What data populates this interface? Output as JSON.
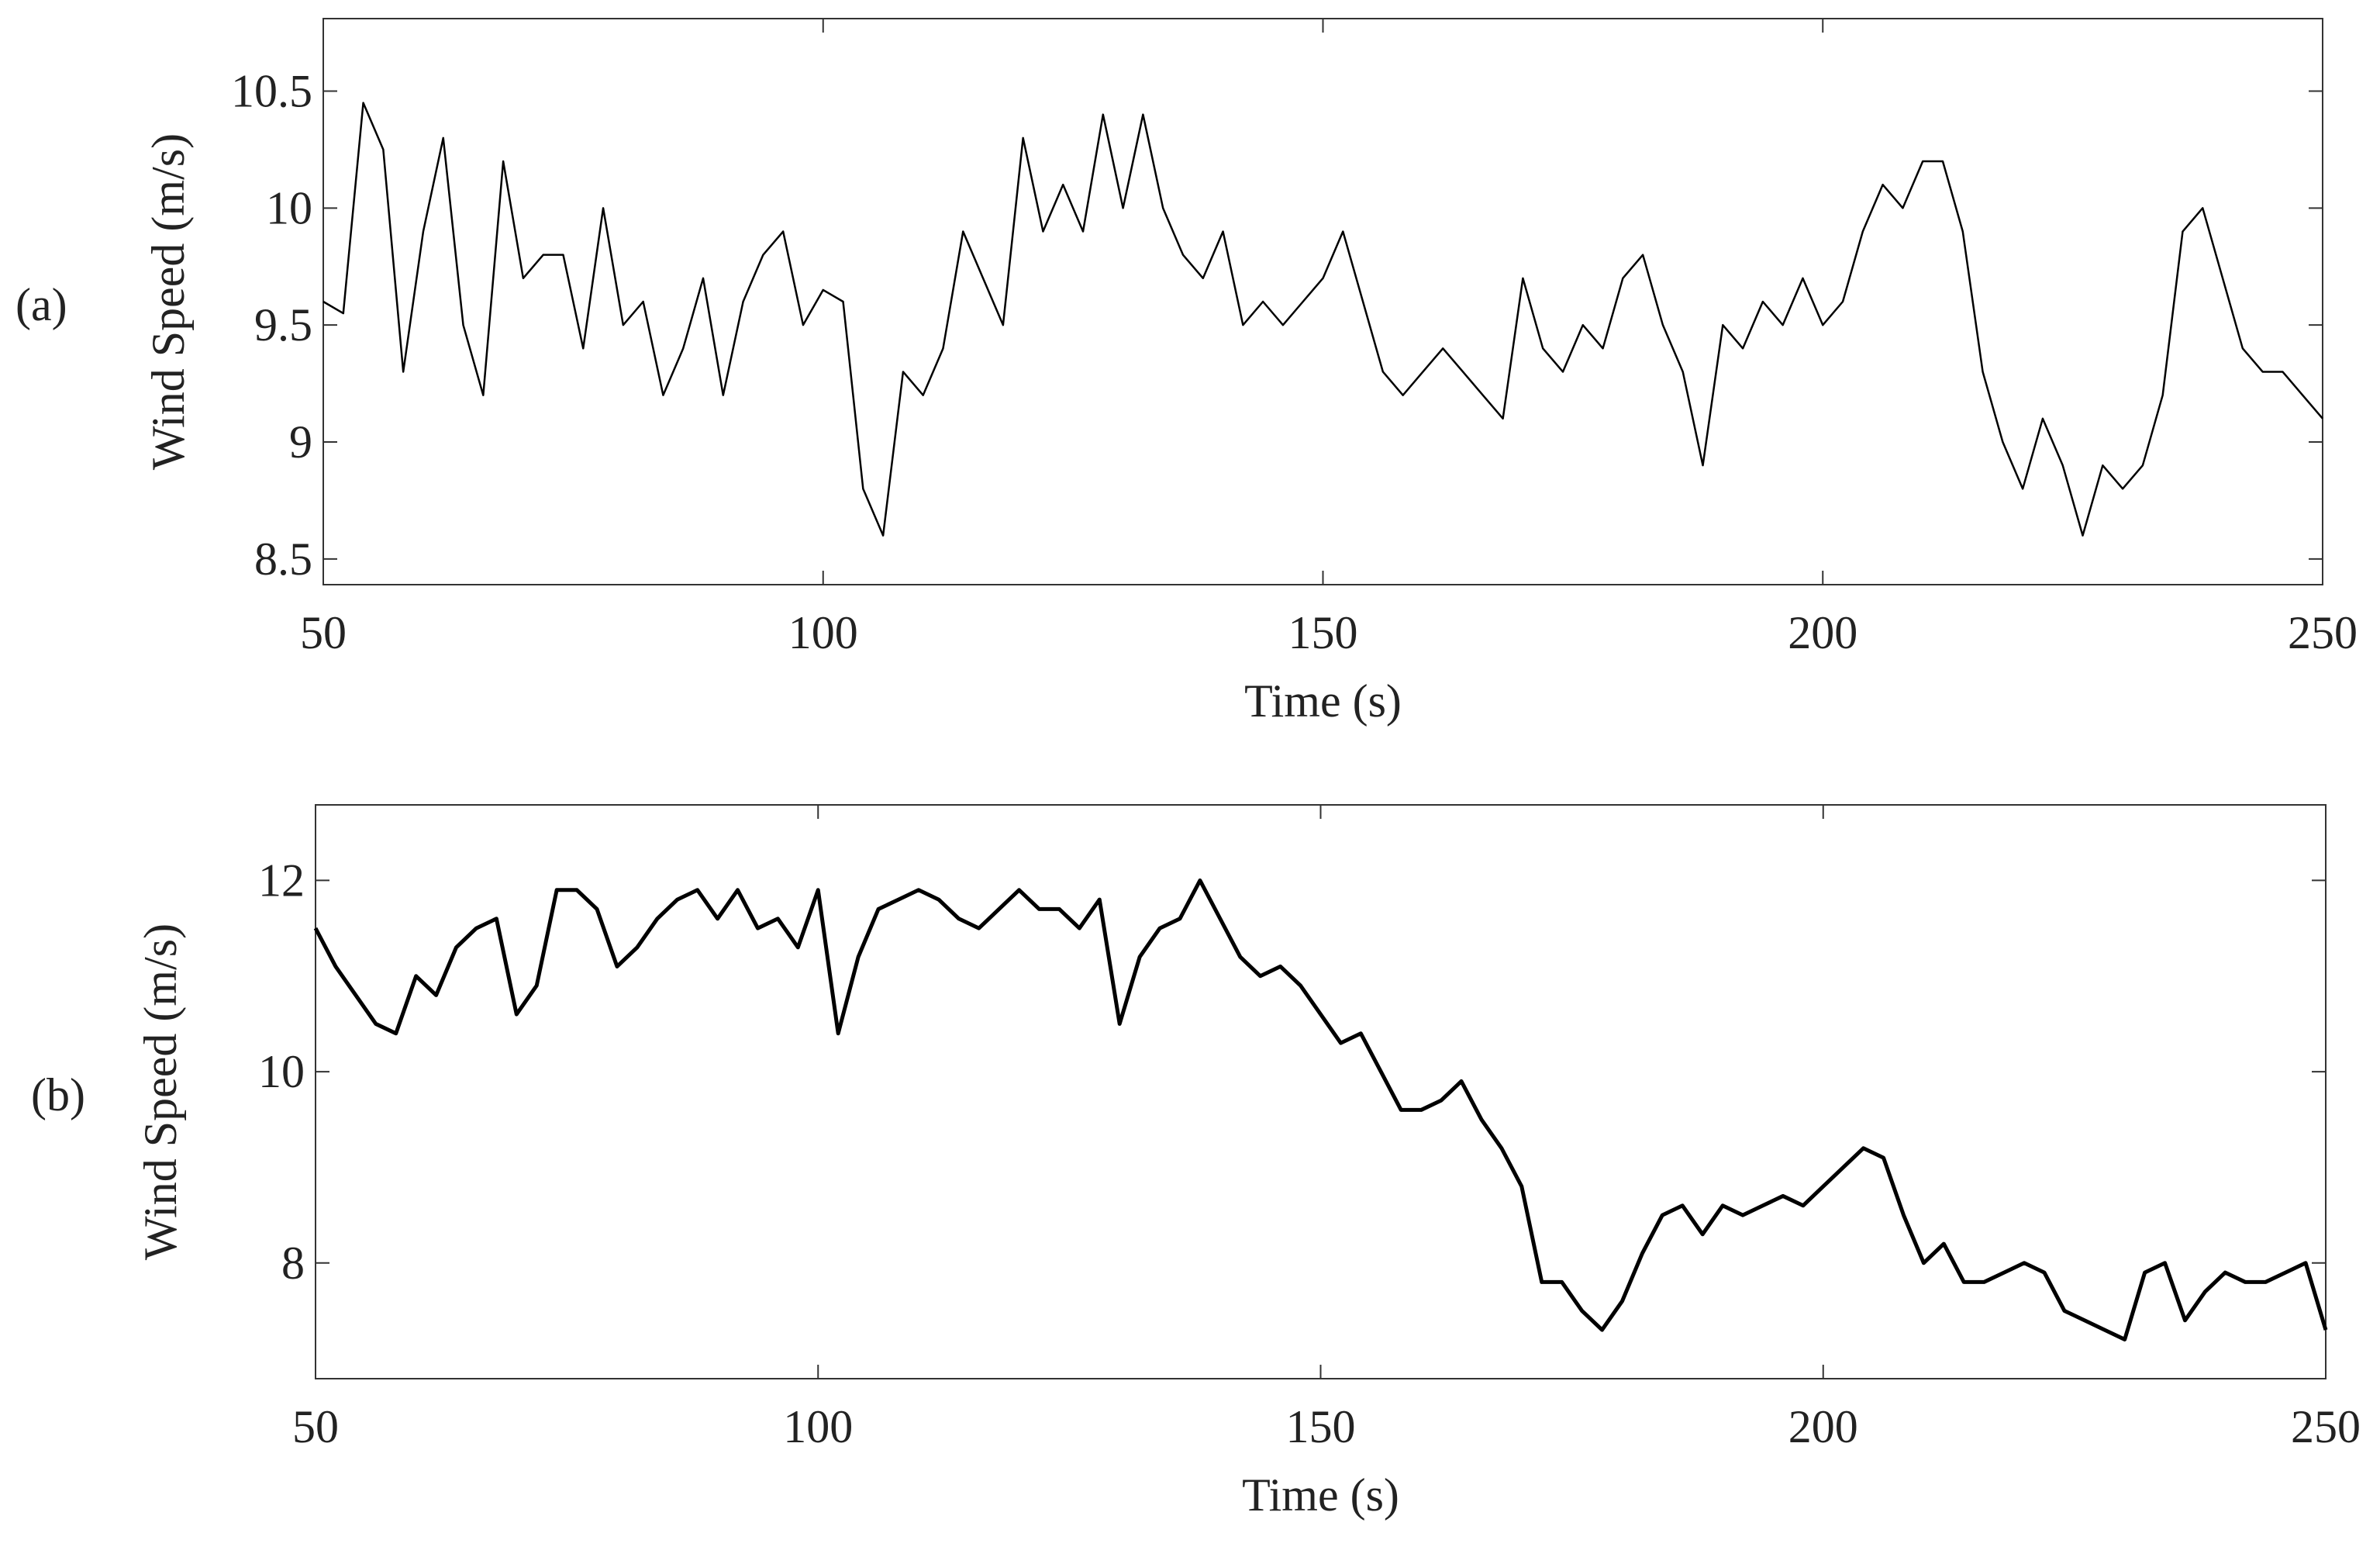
{
  "chart_data": [
    {
      "type": "line",
      "label": "(a)",
      "xlabel": "Time (s)",
      "ylabel": "Wind Speed (m/s)",
      "xlim": [
        50,
        250
      ],
      "xticks": [
        50,
        100,
        150,
        200,
        250
      ],
      "ylim": [
        8.39,
        10.81
      ],
      "yticks": [
        8.5,
        9,
        9.5,
        10,
        10.5
      ],
      "x": [
        50,
        52,
        54,
        56,
        58,
        60,
        62,
        64,
        66,
        68,
        70,
        72,
        74,
        76,
        78,
        80,
        82,
        84,
        86,
        88,
        90,
        92,
        94,
        96,
        98,
        100,
        102,
        104,
        106,
        108,
        110,
        112,
        114,
        116,
        118,
        120,
        122,
        124,
        126,
        128,
        130,
        132,
        134,
        136,
        138,
        140,
        142,
        144,
        146,
        148,
        150,
        152,
        154,
        156,
        158,
        160,
        162,
        164,
        166,
        168,
        170,
        172,
        174,
        176,
        178,
        180,
        182,
        184,
        186,
        188,
        190,
        192,
        194,
        196,
        198,
        200,
        202,
        204,
        206,
        208,
        210,
        212,
        214,
        216,
        218,
        220,
        222,
        224,
        226,
        228,
        230,
        232,
        234,
        236,
        238,
        240,
        242,
        244,
        246,
        248,
        250
      ],
      "series": [
        {
          "color": "#000000",
          "width": 2.5,
          "values": [
            9.6,
            9.55,
            10.45,
            10.25,
            9.3,
            9.9,
            10.3,
            9.5,
            9.2,
            10.2,
            9.7,
            9.8,
            9.8,
            9.4,
            10.0,
            9.5,
            9.6,
            9.2,
            9.4,
            9.7,
            9.2,
            9.6,
            9.8,
            9.9,
            9.5,
            9.65,
            9.6,
            8.8,
            8.6,
            9.3,
            9.2,
            9.4,
            9.9,
            9.7,
            9.5,
            10.3,
            9.9,
            10.1,
            9.9,
            10.4,
            10.0,
            10.4,
            10.0,
            9.8,
            9.7,
            9.9,
            9.5,
            9.6,
            9.5,
            9.6,
            9.7,
            9.9,
            9.6,
            9.3,
            9.2,
            9.3,
            9.4,
            9.3,
            9.2,
            9.1,
            9.7,
            9.4,
            9.3,
            9.5,
            9.4,
            9.7,
            9.8,
            9.5,
            9.3,
            8.9,
            9.5,
            9.4,
            9.6,
            9.5,
            9.7,
            9.5,
            9.6,
            9.9,
            10.1,
            10.0,
            10.2,
            10.2,
            9.9,
            9.3,
            9.0,
            8.8,
            9.1,
            8.9,
            8.6,
            8.9,
            8.8,
            8.9,
            9.2,
            9.9,
            10.0,
            9.7,
            9.4,
            9.3,
            9.3,
            9.2,
            9.1
          ]
        }
      ]
    },
    {
      "type": "line",
      "label": "(b)",
      "xlabel": "Time (s)",
      "ylabel": "Wind Speed (m/s)",
      "xlim": [
        50,
        250
      ],
      "xticks": [
        50,
        100,
        150,
        200,
        250
      ],
      "ylim": [
        6.79,
        12.79
      ],
      "yticks": [
        8,
        10,
        12
      ],
      "x": [
        50,
        52,
        54,
        56,
        58,
        60,
        62,
        64,
        66,
        68,
        70,
        72,
        74,
        76,
        78,
        80,
        82,
        84,
        86,
        88,
        90,
        92,
        94,
        96,
        98,
        100,
        102,
        104,
        106,
        108,
        110,
        112,
        114,
        116,
        118,
        120,
        122,
        124,
        126,
        128,
        130,
        132,
        134,
        136,
        138,
        140,
        142,
        144,
        146,
        148,
        150,
        152,
        154,
        156,
        158,
        160,
        162,
        164,
        166,
        168,
        170,
        172,
        174,
        176,
        178,
        180,
        182,
        184,
        186,
        188,
        190,
        192,
        194,
        196,
        198,
        200,
        202,
        204,
        206,
        208,
        210,
        212,
        214,
        216,
        218,
        220,
        222,
        224,
        226,
        228,
        230,
        232,
        234,
        236,
        238,
        240,
        242,
        244,
        246,
        248,
        250
      ],
      "series": [
        {
          "color": "#000000",
          "width": 5,
          "values": [
            11.5,
            11.1,
            10.8,
            10.5,
            10.4,
            11.0,
            10.8,
            11.3,
            11.5,
            11.6,
            10.6,
            10.9,
            11.9,
            11.9,
            11.7,
            11.1,
            11.3,
            11.6,
            11.8,
            11.9,
            11.6,
            11.9,
            11.5,
            11.6,
            11.3,
            11.9,
            10.4,
            11.2,
            11.7,
            11.8,
            11.9,
            11.8,
            11.6,
            11.5,
            11.7,
            11.9,
            11.7,
            11.7,
            11.5,
            11.8,
            10.5,
            11.2,
            11.5,
            11.6,
            12.0,
            11.6,
            11.2,
            11.0,
            11.1,
            10.9,
            10.6,
            10.3,
            10.4,
            10.0,
            9.6,
            9.6,
            9.7,
            9.9,
            9.5,
            9.2,
            8.8,
            7.8,
            7.8,
            7.5,
            7.3,
            7.6,
            8.1,
            8.5,
            8.6,
            8.3,
            8.6,
            8.5,
            8.6,
            8.7,
            8.6,
            8.8,
            9.0,
            9.2,
            9.1,
            8.5,
            8.0,
            8.2,
            7.8,
            7.8,
            7.9,
            8.0,
            7.9,
            7.5,
            7.4,
            7.3,
            7.2,
            7.9,
            8.0,
            7.4,
            7.7,
            7.9,
            7.8,
            7.8,
            7.9,
            8.0,
            7.3
          ]
        }
      ]
    }
  ]
}
